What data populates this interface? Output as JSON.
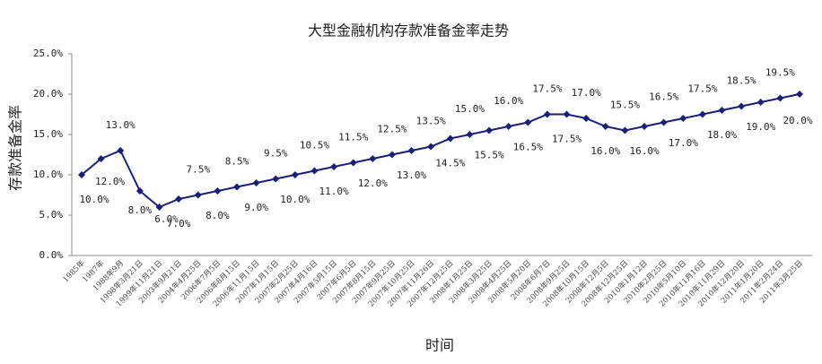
{
  "chart_data": {
    "type": "line",
    "title": "大型金融机构存款准备金率走势",
    "x_label": "时间",
    "y_label": "存款准备金率",
    "categories": [
      "1985年",
      "1987年",
      "1988年9月",
      "1998年3月21日",
      "1999年11月21日",
      "2003年9月21日",
      "2004年4月25日",
      "2006年7月5日",
      "2006年8月15日",
      "2006年11月15日",
      "2007年1月15日",
      "2007年2月25日",
      "2007年4月16日",
      "2007年5月15日",
      "2007年6月5日",
      "2007年8月15日",
      "2007年9月25日",
      "2007年10月25日",
      "2007年11月26日",
      "2007年12月25日",
      "2008年1月25日",
      "2008年3月25日",
      "2008年4月25日",
      "2008年5月20日",
      "2008年6月7日",
      "2008年9月25日",
      "2008年10月15日",
      "2008年12月5日",
      "2008年12月25日",
      "2010年1月12日",
      "2010年2月25日",
      "2010年5月10日",
      "2010年11月16日",
      "2010年11月29日",
      "2010年12月20日",
      "2011年1月20日",
      "2011年2月24日",
      "2011年3月25日"
    ],
    "series": [
      {
        "name": "存款准备金率",
        "color": "#1a1f7a",
        "values": [
          10.0,
          12.0,
          13.0,
          8.0,
          6.0,
          7.0,
          7.5,
          8.0,
          8.5,
          9.0,
          9.5,
          10.0,
          10.5,
          11.0,
          11.5,
          12.0,
          12.5,
          13.0,
          13.5,
          14.5,
          15.0,
          15.5,
          16.0,
          16.5,
          17.5,
          17.5,
          17.0,
          16.0,
          15.5,
          16.0,
          16.5,
          17.0,
          17.5,
          18.0,
          18.5,
          19.0,
          19.5,
          20.0
        ],
        "value_labels": [
          "10.0%",
          "12.0%",
          "13.0%",
          "8.0%",
          "6.0%",
          "7.0%",
          "7.5%",
          "8.0%",
          "8.5%",
          "9.0%",
          "9.5%",
          "10.0%",
          "10.5%",
          "11.0%",
          "11.5%",
          "12.0%",
          "12.5%",
          "13.0%",
          "13.5%",
          "14.5%",
          "15.0%",
          "15.5%",
          "16.0%",
          "16.5%",
          "17.5%",
          "17.5%",
          "17.0%",
          "16.0%",
          "15.5%",
          "16.0%",
          "16.5%",
          "17.0%",
          "17.5%",
          "18.0%",
          "18.5%",
          "19.0%",
          "19.5%",
          "20.0%"
        ]
      }
    ],
    "ylim": [
      0,
      25
    ],
    "yticks": [
      {
        "value": 0,
        "label": "0.0%"
      },
      {
        "value": 5,
        "label": "5.0%"
      },
      {
        "value": 10,
        "label": "10.0%"
      },
      {
        "value": 15,
        "label": "15.0%"
      },
      {
        "value": 20,
        "label": "20.0%"
      },
      {
        "value": 25,
        "label": "25.0%"
      }
    ],
    "grid": false
  }
}
